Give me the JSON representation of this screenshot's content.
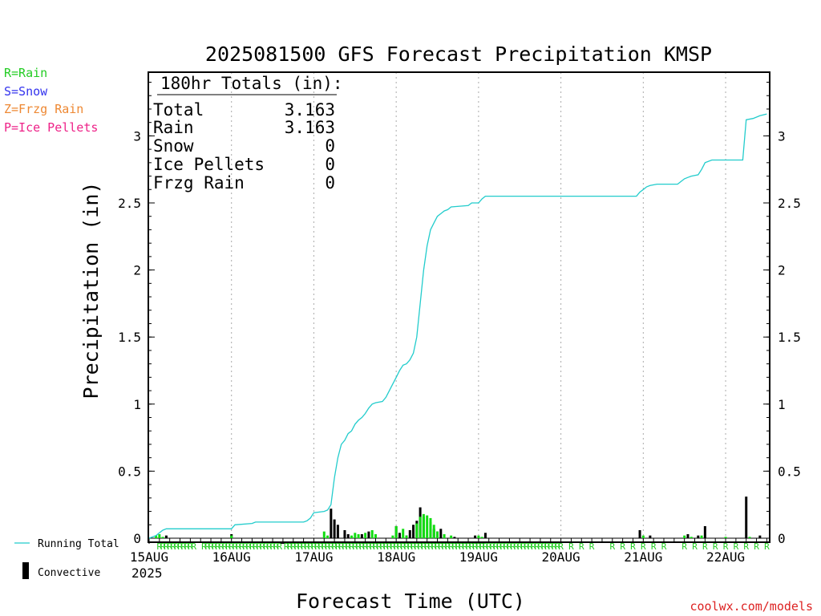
{
  "chart_data": {
    "type": "bar",
    "title": "2025081500 GFS Forecast Precipitation KMSP",
    "xlabel": "Forecast Time (UTC)",
    "ylabel": "Precipitation (in)",
    "ylim": [
      0,
      3.5
    ],
    "y_ticks": [
      0,
      0.5,
      1,
      1.5,
      2,
      2.5,
      3
    ],
    "y_tick_labels": [
      "0",
      "0.5",
      "1",
      "1.5",
      "2",
      "2.5",
      "3"
    ],
    "x_ticks": [
      {
        "hour": 0,
        "label": "15AUG"
      },
      {
        "hour": 24,
        "label": "16AUG"
      },
      {
        "hour": 48,
        "label": "17AUG"
      },
      {
        "hour": 72,
        "label": "18AUG"
      },
      {
        "hour": 96,
        "label": "19AUG"
      },
      {
        "hour": 120,
        "label": "20AUG"
      },
      {
        "hour": 144,
        "label": "21AUG"
      },
      {
        "hour": 168,
        "label": "22AUG"
      }
    ],
    "x_sublabel": "2025",
    "xlim": [
      0,
      180
    ],
    "grid": "vertical dotted at day boundaries",
    "totals_box": {
      "heading": "180hr Totals (in):",
      "rows": [
        {
          "label": "Total",
          "value": "3.163"
        },
        {
          "label": "Rain",
          "value": "3.163"
        },
        {
          "label": "Snow",
          "value": "0"
        },
        {
          "label": "Ice Pellets",
          "value": "0"
        },
        {
          "label": "Frzg Rain",
          "value": "0"
        }
      ]
    },
    "ptype_legend": [
      {
        "text": "R=Rain",
        "color": "#22cc22"
      },
      {
        "text": "S=Snow",
        "color": "#3333ee"
      },
      {
        "text": "Z=Frzg Rain",
        "color": "#ee8833"
      },
      {
        "text": "P=Ice Pellets",
        "color": "#ee2288"
      }
    ],
    "bottom_legend": {
      "running_total": "Running Total",
      "convective": "Convective"
    },
    "credit": "coolwx.com/models",
    "series": [
      {
        "name": "Running Total",
        "color": "#22cccc",
        "points": [
          [
            0,
            0
          ],
          [
            2,
            0.02
          ],
          [
            3,
            0.04
          ],
          [
            4,
            0.06
          ],
          [
            5,
            0.07
          ],
          [
            24,
            0.07
          ],
          [
            25,
            0.1
          ],
          [
            30,
            0.11
          ],
          [
            31,
            0.12
          ],
          [
            45,
            0.12
          ],
          [
            46,
            0.13
          ],
          [
            47,
            0.15
          ],
          [
            48,
            0.19
          ],
          [
            51,
            0.2
          ],
          [
            52,
            0.21
          ],
          [
            53,
            0.25
          ],
          [
            54,
            0.45
          ],
          [
            55,
            0.6
          ],
          [
            56,
            0.7
          ],
          [
            57,
            0.73
          ],
          [
            58,
            0.78
          ],
          [
            59,
            0.8
          ],
          [
            60,
            0.85
          ],
          [
            61,
            0.88
          ],
          [
            62,
            0.9
          ],
          [
            63,
            0.93
          ],
          [
            64,
            0.97
          ],
          [
            65,
            1.0
          ],
          [
            66,
            1.01
          ],
          [
            68,
            1.02
          ],
          [
            69,
            1.05
          ],
          [
            70,
            1.1
          ],
          [
            71,
            1.15
          ],
          [
            72,
            1.2
          ],
          [
            73,
            1.25
          ],
          [
            74,
            1.29
          ],
          [
            75,
            1.3
          ],
          [
            76,
            1.33
          ],
          [
            77,
            1.38
          ],
          [
            78,
            1.5
          ],
          [
            79,
            1.75
          ],
          [
            80,
            2.0
          ],
          [
            81,
            2.18
          ],
          [
            82,
            2.3
          ],
          [
            83,
            2.35
          ],
          [
            84,
            2.4
          ],
          [
            85,
            2.42
          ],
          [
            86,
            2.44
          ],
          [
            87,
            2.45
          ],
          [
            88,
            2.47
          ],
          [
            93,
            2.48
          ],
          [
            94,
            2.5
          ],
          [
            96,
            2.5
          ],
          [
            97,
            2.53
          ],
          [
            98,
            2.55
          ],
          [
            142,
            2.55
          ],
          [
            143,
            2.58
          ],
          [
            144,
            2.6
          ],
          [
            145,
            2.62
          ],
          [
            146,
            2.63
          ],
          [
            148,
            2.64
          ],
          [
            154,
            2.64
          ],
          [
            155,
            2.66
          ],
          [
            156,
            2.68
          ],
          [
            157,
            2.69
          ],
          [
            158,
            2.7
          ],
          [
            160,
            2.71
          ],
          [
            161,
            2.75
          ],
          [
            162,
            2.8
          ],
          [
            164,
            2.82
          ],
          [
            173,
            2.82
          ],
          [
            174,
            3.12
          ],
          [
            176,
            3.13
          ],
          [
            177,
            3.14
          ],
          [
            178,
            3.15
          ],
          [
            180,
            3.163
          ]
        ]
      },
      {
        "name": "Convective",
        "color": "#000000",
        "points": [
          [
            5,
            0.02
          ],
          [
            24,
            0.03
          ],
          [
            53,
            0.22
          ],
          [
            54,
            0.14
          ],
          [
            55,
            0.1
          ],
          [
            57,
            0.06
          ],
          [
            58,
            0.03
          ],
          [
            62,
            0.03
          ],
          [
            64,
            0.05
          ],
          [
            72,
            0.09
          ],
          [
            73,
            0.04
          ],
          [
            75,
            0.02
          ],
          [
            76,
            0.06
          ],
          [
            77,
            0.1
          ],
          [
            78,
            0.13
          ],
          [
            79,
            0.23
          ],
          [
            80,
            0.16
          ],
          [
            82,
            0.12
          ],
          [
            83,
            0.07
          ],
          [
            84,
            0.05
          ],
          [
            85,
            0.07
          ],
          [
            89,
            0.01
          ],
          [
            95,
            0.02
          ],
          [
            98,
            0.04
          ],
          [
            143,
            0.06
          ],
          [
            146,
            0.02
          ],
          [
            157,
            0.03
          ],
          [
            160,
            0.02
          ],
          [
            162,
            0.09
          ],
          [
            174,
            0.31
          ],
          [
            178,
            0.02
          ]
        ]
      },
      {
        "name": "Rain",
        "color": "#11dd11",
        "points": [
          [
            2,
            0.02
          ],
          [
            3,
            0.03
          ],
          [
            4,
            0.01
          ],
          [
            24,
            0.02
          ],
          [
            51,
            0.05
          ],
          [
            52,
            0.02
          ],
          [
            59,
            0.02
          ],
          [
            60,
            0.04
          ],
          [
            61,
            0.03
          ],
          [
            63,
            0.04
          ],
          [
            65,
            0.06
          ],
          [
            66,
            0.03
          ],
          [
            71,
            0.02
          ],
          [
            72,
            0.09
          ],
          [
            74,
            0.07
          ],
          [
            75,
            0.02
          ],
          [
            78,
            0.11
          ],
          [
            79,
            0.16
          ],
          [
            80,
            0.18
          ],
          [
            81,
            0.17
          ],
          [
            82,
            0.15
          ],
          [
            83,
            0.1
          ],
          [
            84,
            0.05
          ],
          [
            86,
            0.03
          ],
          [
            88,
            0.02
          ],
          [
            96,
            0.02
          ],
          [
            97,
            0.01
          ],
          [
            144,
            0.02
          ],
          [
            156,
            0.02
          ],
          [
            158,
            0.01
          ],
          [
            161,
            0.02
          ],
          [
            168,
            0.01
          ],
          [
            175,
            0.01
          ]
        ]
      }
    ],
    "rain_marker": "R",
    "rain_marker_hours": [
      3,
      4,
      5,
      6,
      7,
      8,
      9,
      10,
      11,
      12,
      13,
      16,
      17,
      18,
      19,
      20,
      21,
      22,
      23,
      24,
      25,
      26,
      27,
      28,
      29,
      30,
      31,
      32,
      33,
      34,
      35,
      36,
      37,
      38,
      40,
      41,
      42,
      43,
      44,
      45,
      46,
      47,
      48,
      49,
      50,
      51,
      52,
      53,
      54,
      55,
      56,
      57,
      58,
      59,
      60,
      61,
      62,
      63,
      64,
      65,
      66,
      67,
      68,
      69,
      70,
      71,
      72,
      73,
      74,
      75,
      76,
      77,
      78,
      79,
      80,
      81,
      82,
      83,
      84,
      85,
      86,
      87,
      88,
      89,
      90,
      91,
      92,
      93,
      94,
      95,
      96,
      97,
      98,
      99,
      100,
      101,
      102,
      103,
      104,
      105,
      106,
      107,
      108,
      109,
      110,
      111,
      112,
      113,
      114,
      115,
      116,
      117,
      118,
      119,
      120,
      123,
      126,
      129,
      135,
      138,
      141,
      144,
      147,
      150,
      156,
      159,
      162,
      165,
      168,
      171,
      174,
      177,
      180
    ]
  }
}
